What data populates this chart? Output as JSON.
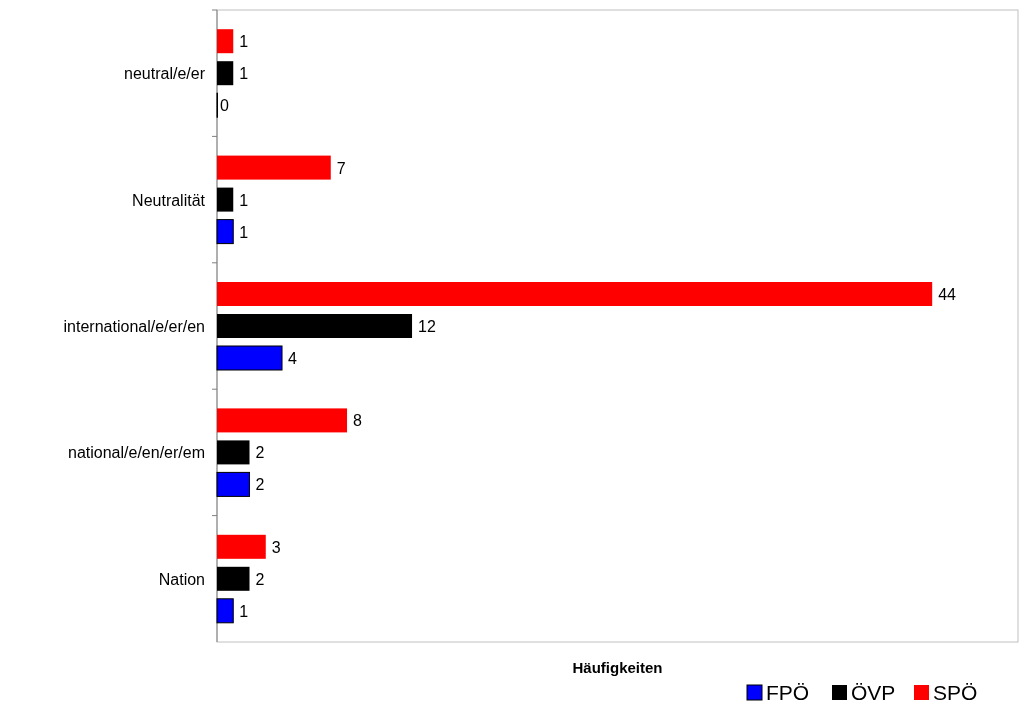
{
  "chart_data": {
    "type": "bar",
    "orientation": "horizontal",
    "xlabel": "Häufigkeiten",
    "categories": [
      "neutral/e/er",
      "Neutralität",
      "international/e/er/en",
      "national/e/en/er/em",
      "Nation"
    ],
    "series": [
      {
        "name": "FPÖ",
        "color": "#0000ff",
        "values": [
          0,
          1,
          4,
          2,
          1
        ]
      },
      {
        "name": "ÖVP",
        "color": "#000000",
        "values": [
          1,
          1,
          12,
          2,
          2
        ]
      },
      {
        "name": "SPÖ",
        "color": "#ff0000",
        "values": [
          1,
          7,
          44,
          8,
          3
        ]
      }
    ],
    "data_labels": true,
    "legend": "bottom right"
  }
}
